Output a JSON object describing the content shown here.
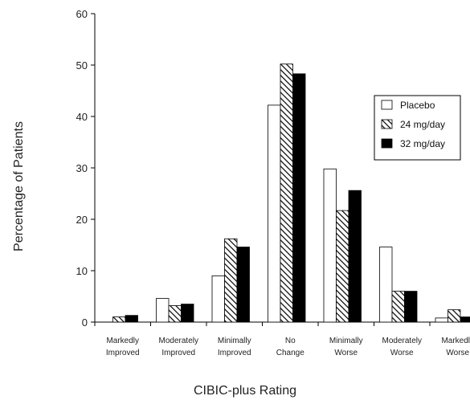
{
  "chart_data": {
    "type": "bar",
    "xlabel": "CIBIC-plus Rating",
    "ylabel": "Percentage of Patients",
    "ylim": [
      0,
      60
    ],
    "yticks": [
      0,
      10,
      20,
      30,
      40,
      50,
      60
    ],
    "categories": [
      [
        "Markedly",
        "Improved"
      ],
      [
        "Moderately",
        "Improved"
      ],
      [
        "Minimally",
        "Improved"
      ],
      [
        "No",
        "Change"
      ],
      [
        "Minimally",
        "Worse"
      ],
      [
        "Moderately",
        "Worse"
      ],
      [
        "Markedly",
        "Worse"
      ]
    ],
    "series": [
      {
        "name": "Placebo",
        "fill": "white",
        "values": [
          0,
          4.6,
          9.0,
          42.2,
          29.8,
          14.6,
          0.8
        ]
      },
      {
        "name": "24 mg/day",
        "fill": "hatched",
        "values": [
          1.0,
          3.2,
          16.2,
          50.2,
          21.7,
          6.0,
          2.4
        ]
      },
      {
        "name": "32 mg/day",
        "fill": "black",
        "values": [
          1.3,
          3.5,
          14.6,
          48.3,
          25.6,
          6.0,
          1.0
        ]
      }
    ],
    "legend_position": "right",
    "grid": false,
    "colors": {
      "bar_stroke": "#000000",
      "black_fill": "#000000",
      "white_fill": "#ffffff"
    }
  }
}
